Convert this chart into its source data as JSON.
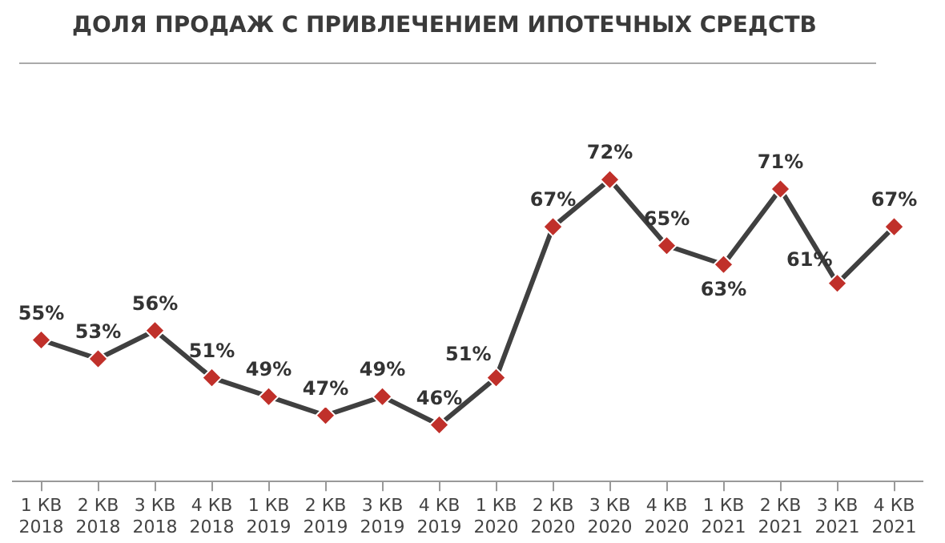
{
  "chart_data": {
    "type": "line",
    "title": "ДОЛЯ ПРОДАЖ С ПРИВЛЕЧЕНИЕМ ИПОТЕЧНЫХ СРЕДСТВ",
    "categories": [
      "1 КВ\n2018",
      "2 КВ\n2018",
      "3 КВ\n2018",
      "4 КВ\n2018",
      "1 КВ\n2019",
      "2 КВ\n2019",
      "3 КВ\n2019",
      "4 КВ\n2019",
      "1 КВ\n2020",
      "2 КВ\n2020",
      "3 КВ\n2020",
      "4 КВ\n2020",
      "1 КВ\n2021",
      "2 КВ\n2021",
      "3 КВ\n2021",
      "4 КВ\n2021"
    ],
    "series": [
      {
        "color": "#404040",
        "values": [
          55,
          53,
          56,
          51,
          49,
          47,
          49,
          46,
          51,
          67,
          72,
          65,
          63,
          71,
          61,
          67
        ],
        "value_labels": [
          "55%",
          "53%",
          "56%",
          "51%",
          "49%",
          "47%",
          "49%",
          "46%",
          "51%",
          "67%",
          "72%",
          "65%",
          "63%",
          "71%",
          "61%",
          "67%"
        ]
      }
    ],
    "marker": "diamond",
    "line_style": "solid",
    "tick_labels": "x"
  }
}
